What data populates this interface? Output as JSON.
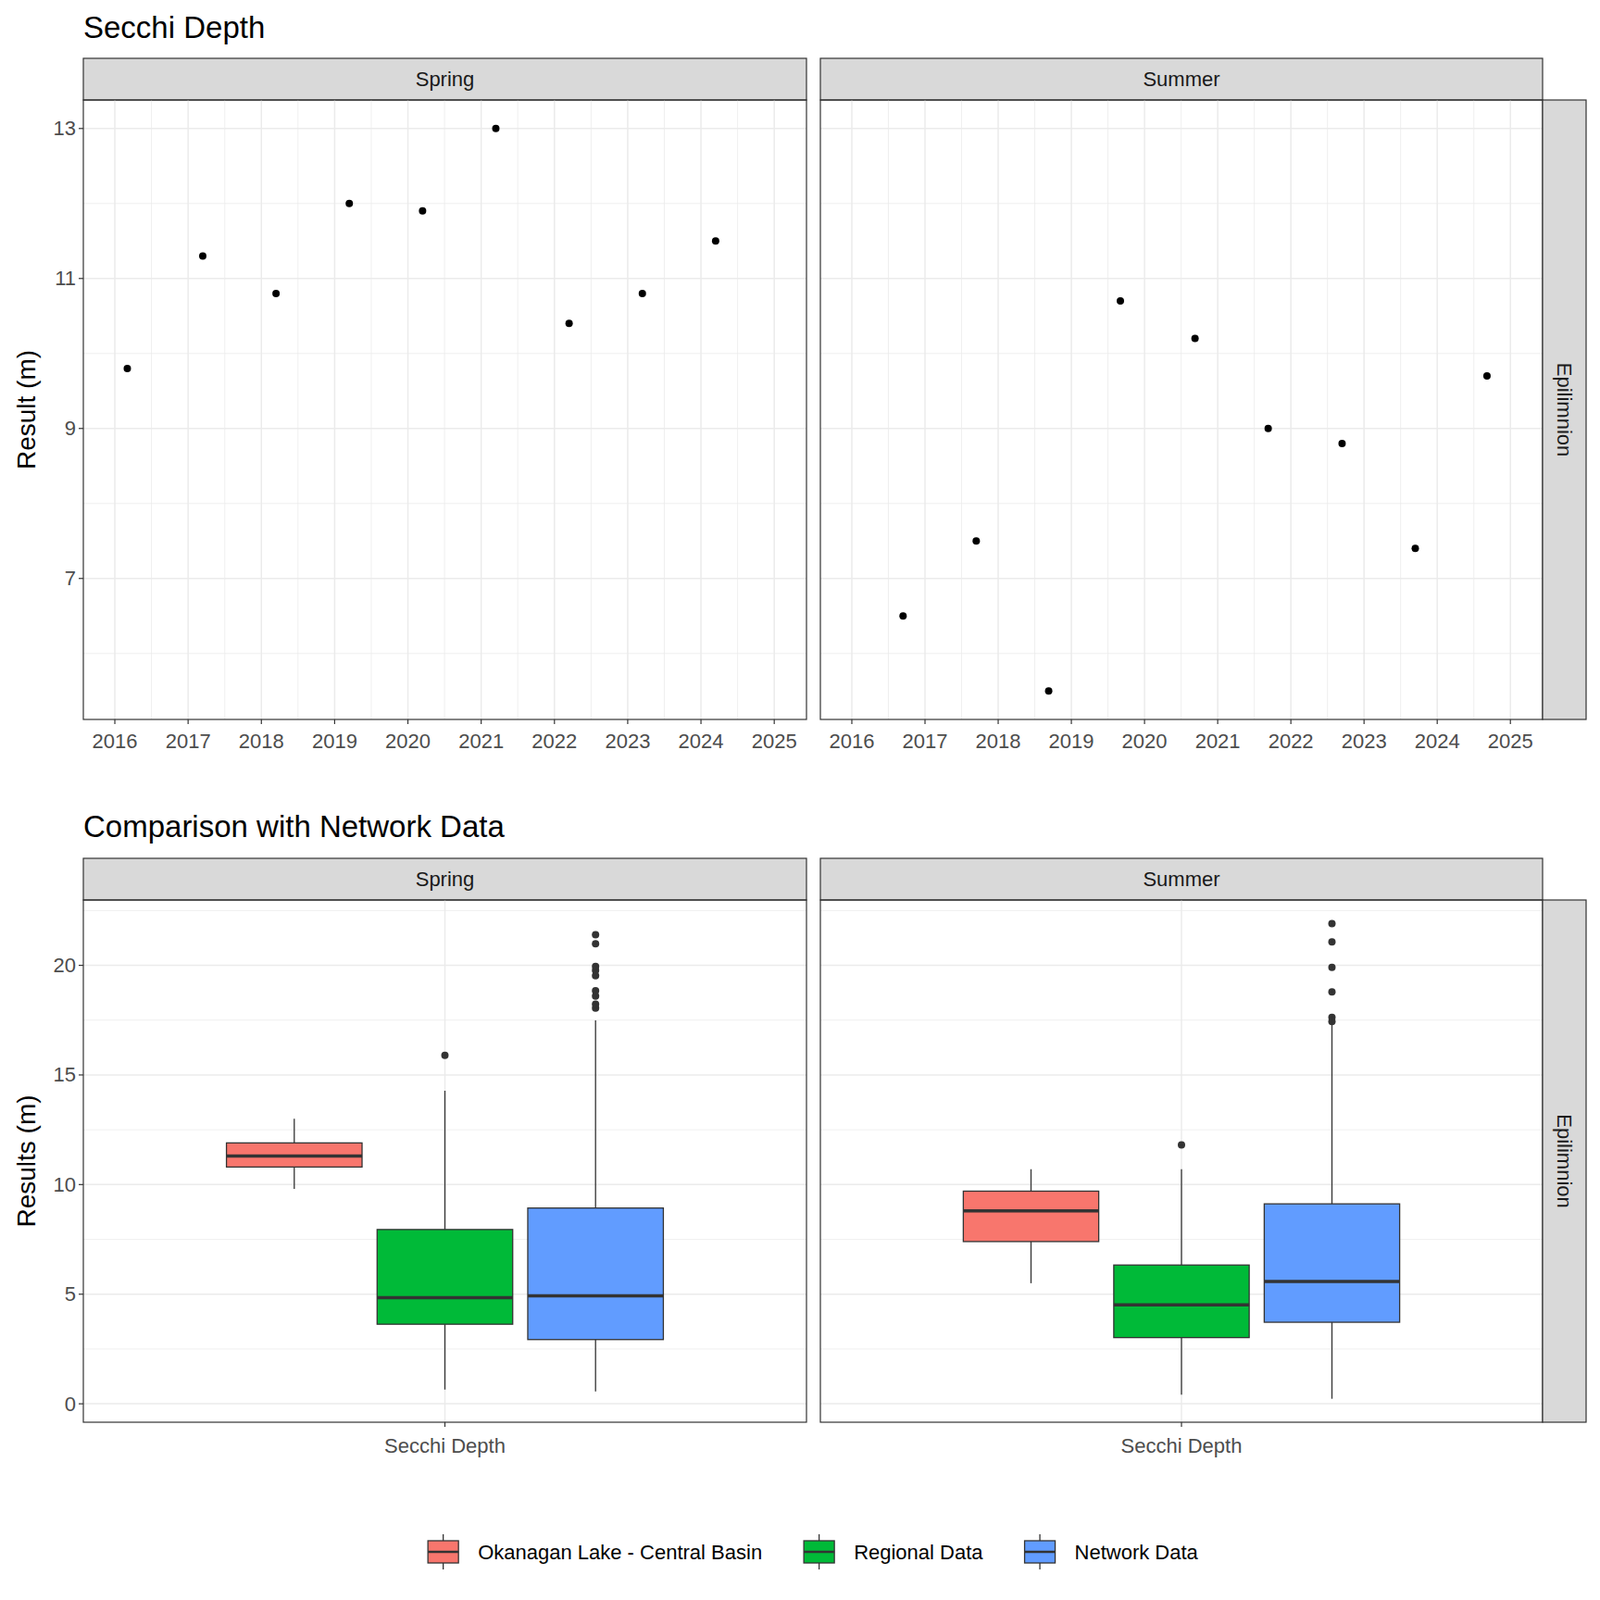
{
  "chart_data": [
    {
      "type": "scatter",
      "title": "Secchi Depth",
      "y_label": "Result (m)",
      "strip": "Epilimnion",
      "color": "#000000",
      "grid": true,
      "xlim": [
        2015.57,
        2025.44
      ],
      "xticks": [
        2016,
        2017,
        2018,
        2019,
        2020,
        2021,
        2022,
        2023,
        2024,
        2025
      ],
      "ylim": [
        5.12,
        13.38
      ],
      "yticks": [
        7,
        9,
        11,
        13
      ],
      "panels": [
        {
          "label": "Spring",
          "x": [
            2016.17,
            2017.2,
            2018.2,
            2019.2,
            2020.2,
            2021.2,
            2022.2,
            2023.2,
            2024.2
          ],
          "values": [
            9.8,
            11.3,
            10.8,
            12.0,
            11.9,
            13.0,
            10.4,
            10.8,
            11.5
          ]
        },
        {
          "label": "Summer",
          "x": [
            2016.7,
            2017.7,
            2018.69,
            2019.67,
            2020.69,
            2021.69,
            2022.7,
            2023.7,
            2024.68
          ],
          "values": [
            6.5,
            7.5,
            5.5,
            10.7,
            10.2,
            9.0,
            8.8,
            7.4,
            9.7
          ]
        }
      ]
    },
    {
      "type": "box",
      "title": "Comparison with Network Data",
      "y_label": "Results (m)",
      "strip": "Epilimnion",
      "categories": [
        "Secchi Depth"
      ],
      "facets": [
        "Spring",
        "Summer"
      ],
      "grid": true,
      "legend": "bottom",
      "ylim": [
        -0.84,
        22.98
      ],
      "yticks": [
        0,
        5,
        10,
        15,
        20
      ],
      "series": [
        {
          "name": "Okanagan Lake - Central Basin",
          "color": "#F8766D",
          "boxes": [
            {
              "min": 9.8,
              "q1": 10.8,
              "median": 11.3,
              "q3": 11.9,
              "max": 13.0,
              "outliers": []
            },
            {
              "min": 5.5,
              "q1": 7.4,
              "median": 8.8,
              "q3": 9.7,
              "max": 10.7,
              "outliers": []
            }
          ]
        },
        {
          "name": "Regional Data",
          "color": "#00BA38",
          "boxes": [
            {
              "min": 0.65,
              "q1": 3.63,
              "median": 4.84,
              "q3": 7.95,
              "max": 14.28,
              "outliers": [
                15.9
              ]
            },
            {
              "min": 0.42,
              "q1": 3.02,
              "median": 4.51,
              "q3": 6.33,
              "max": 10.7,
              "outliers": [
                11.81
              ]
            }
          ]
        },
        {
          "name": "Network Data",
          "color": "#619CFF",
          "boxes": [
            {
              "min": 0.56,
              "q1": 2.93,
              "median": 4.93,
              "q3": 8.93,
              "max": 17.49,
              "outliers": [
                18.05,
                18.23,
                18.6,
                18.84,
                19.53,
                19.77,
                19.95,
                20.98,
                21.4
              ]
            },
            {
              "min": 0.23,
              "q1": 3.72,
              "median": 5.58,
              "q3": 9.12,
              "max": 17.3,
              "outliers": [
                17.44,
                17.63,
                18.79,
                19.91,
                21.07,
                21.9
              ]
            }
          ]
        }
      ]
    }
  ]
}
